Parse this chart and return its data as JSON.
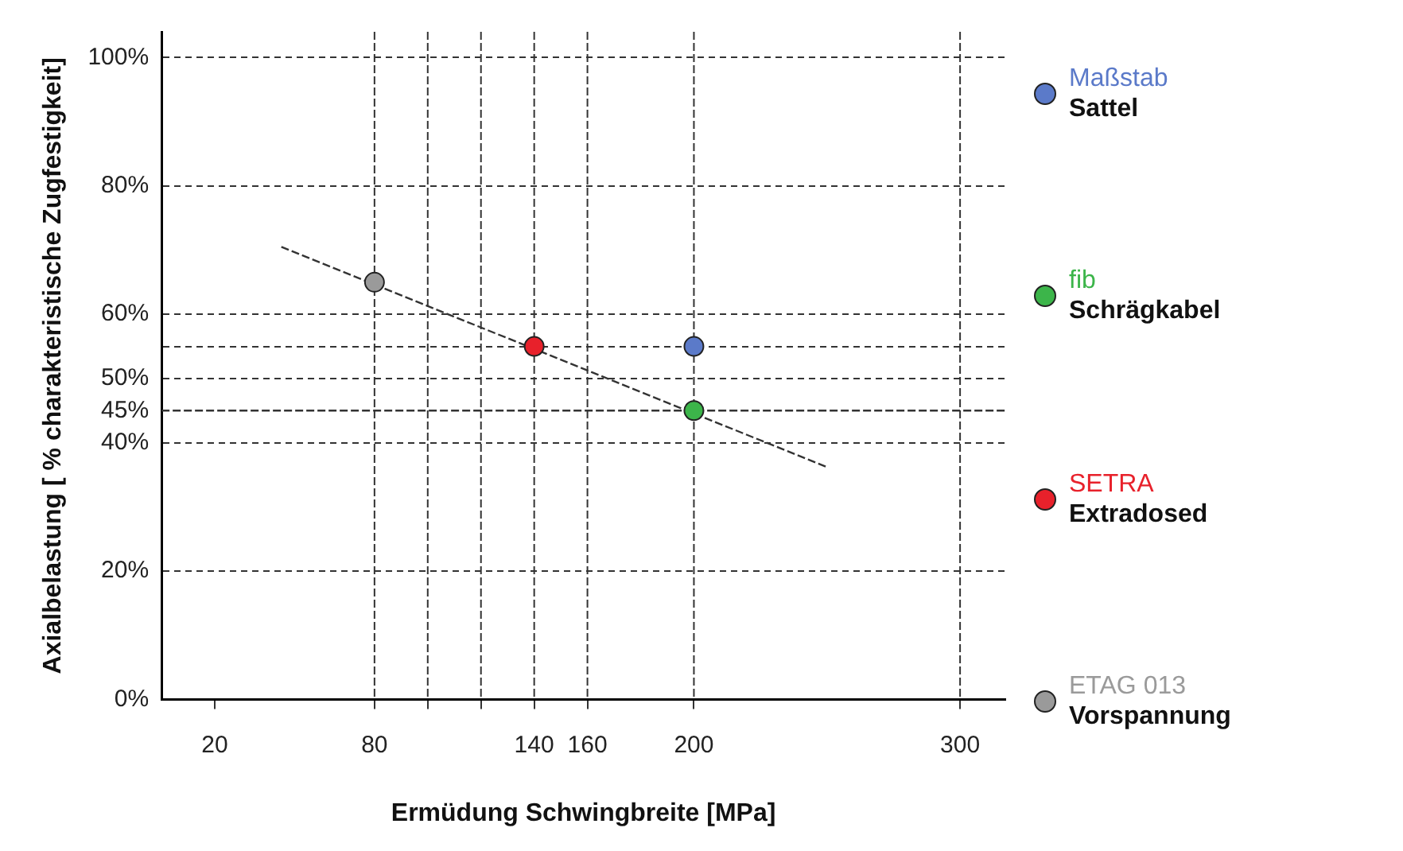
{
  "chart_data": {
    "type": "scatter",
    "xlabel": "Ermüdung Schwingbreite [MPa]",
    "ylabel": "Axialbelastung [ % charakteristische Zugfestigkeit]",
    "xlim": [
      0,
      317
    ],
    "ylim": [
      0,
      104
    ],
    "xticks": [
      20,
      80,
      {
        "value": 100,
        "label": null
      },
      {
        "value": 120,
        "label": null
      },
      140,
      160,
      200,
      300
    ],
    "yticks": [
      {
        "value": 0,
        "label": "0%"
      },
      {
        "value": 20,
        "label": "20%"
      },
      {
        "value": 40,
        "label": "40%"
      },
      {
        "value": 45,
        "label": "45%"
      },
      {
        "value": 50,
        "label": "50%"
      },
      {
        "value": 55,
        "label": null
      },
      {
        "value": 60,
        "label": "60%"
      },
      {
        "value": 80,
        "label": "80%"
      },
      {
        "value": 100,
        "label": "100%"
      }
    ],
    "grid": "y",
    "legend": "right",
    "marker": "circle",
    "ref_lines": [
      {
        "axis": "x",
        "value": 80,
        "line_style": "dashed"
      },
      {
        "axis": "x",
        "value": 100,
        "line_style": "dashed"
      },
      {
        "axis": "x",
        "value": 120,
        "line_style": "dashed"
      },
      {
        "axis": "x",
        "value": 140,
        "line_style": "dashed"
      },
      {
        "axis": "x",
        "value": 160,
        "line_style": "dashed"
      },
      {
        "axis": "x",
        "value": 200,
        "line_style": "dashed"
      },
      {
        "axis": "x",
        "value": 300,
        "line_style": "dashed"
      },
      {
        "axis": "y",
        "value": 45,
        "line_style": "dashed"
      }
    ],
    "series": [
      {
        "name": "Maßstab\nSattel",
        "color": "#5b7ac9",
        "x": [
          200
        ],
        "values": [
          55
        ]
      },
      {
        "name": "fib\nSchrägkabel",
        "color": "#3cb54a",
        "x": [
          200
        ],
        "values": [
          45
        ]
      },
      {
        "name": "SETRA\nExtradosed",
        "color": "#e8212b",
        "x": [
          140
        ],
        "values": [
          55
        ]
      },
      {
        "name": "ETAG 013\nVorspannung",
        "color": "#9a9a9a",
        "x": [
          80
        ],
        "values": [
          65
        ]
      },
      {
        "type": "line",
        "color": "#333333",
        "x": [
          45,
          250
        ],
        "values": [
          70.5,
          36.2
        ],
        "marker": "none",
        "line_style": "dashed"
      }
    ]
  }
}
